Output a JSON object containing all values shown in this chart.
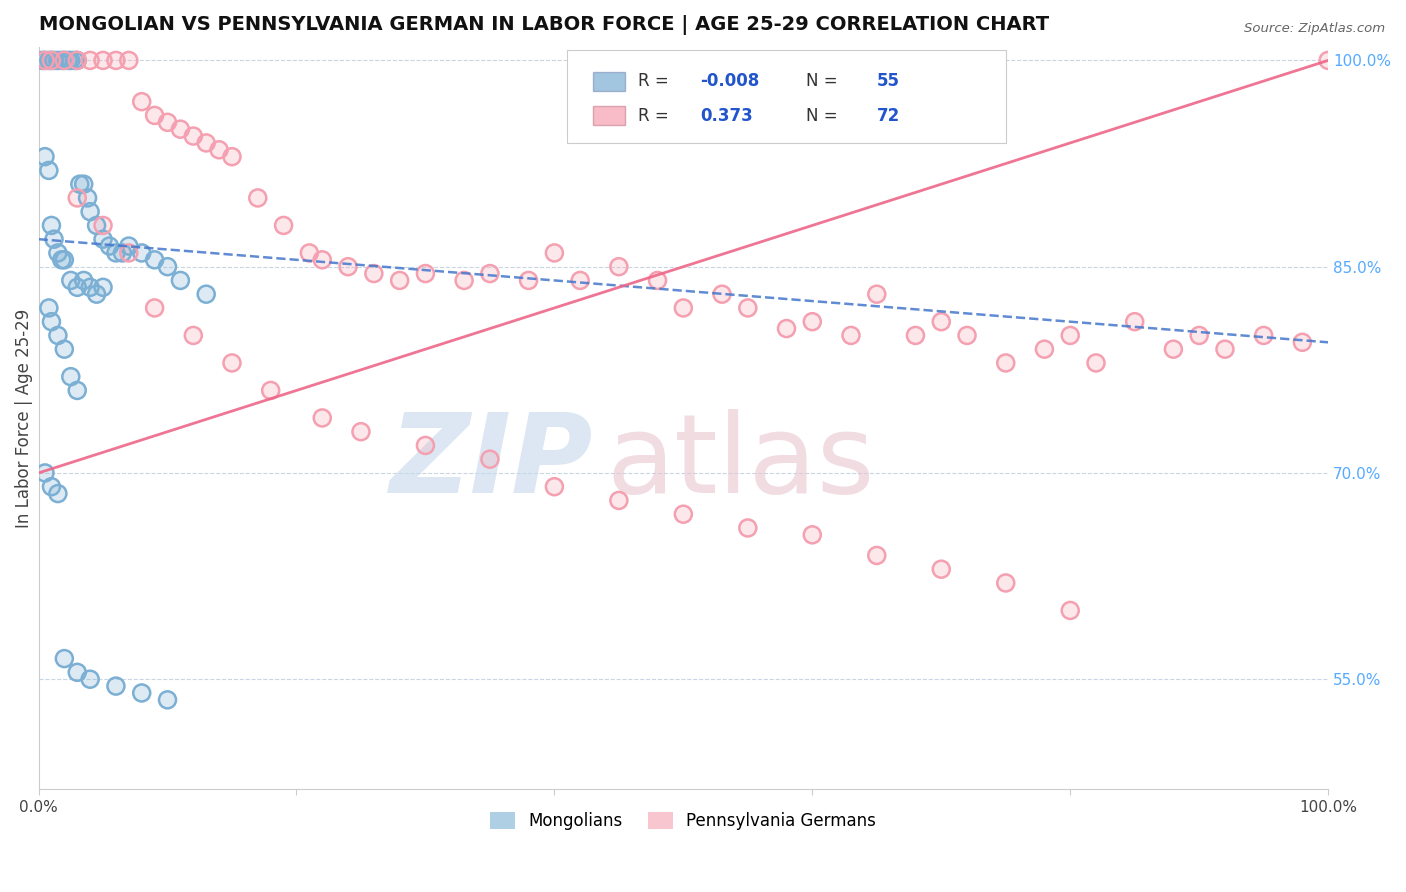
{
  "title": "MONGOLIAN VS PENNSYLVANIA GERMAN IN LABOR FORCE | AGE 25-29 CORRELATION CHART",
  "source": "Source: ZipAtlas.com",
  "ylabel": "In Labor Force | Age 25-29",
  "legend_label1": "Mongolians",
  "legend_label2": "Pennsylvania Germans",
  "r1": "-0.008",
  "n1": "55",
  "r2": "0.373",
  "n2": "72",
  "mongolian_color": "#7BAFD4",
  "penn_german_color": "#F4A0B0",
  "trend_blue_color": "#4477CC",
  "trend_pink_color": "#EE6688",
  "right_yticks": [
    55.0,
    70.0,
    85.0,
    100.0
  ],
  "ymin": 47.0,
  "ymax": 101.0,
  "xmin": 0.0,
  "xmax": 100.0,
  "mongolian_x": [
    0.3,
    0.5,
    0.8,
    1.0,
    1.2,
    1.5,
    1.8,
    2.0,
    2.3,
    2.5,
    2.8,
    3.0,
    3.2,
    3.5,
    3.8,
    4.0,
    4.5,
    5.0,
    5.5,
    6.0,
    6.5,
    7.0,
    8.0,
    9.0,
    10.0,
    11.0,
    13.0,
    0.5,
    0.8,
    1.0,
    1.2,
    1.5,
    1.8,
    2.0,
    2.5,
    3.0,
    3.5,
    4.0,
    4.5,
    5.0,
    0.8,
    1.0,
    1.5,
    2.0,
    2.5,
    3.0,
    0.5,
    1.0,
    1.5,
    2.0,
    3.0,
    4.0,
    6.0,
    8.0,
    10.0
  ],
  "mongolian_y": [
    100.0,
    100.0,
    100.0,
    100.0,
    100.0,
    100.0,
    100.0,
    100.0,
    100.0,
    100.0,
    100.0,
    100.0,
    91.0,
    91.0,
    90.0,
    89.0,
    88.0,
    87.0,
    86.5,
    86.0,
    86.0,
    86.5,
    86.0,
    85.5,
    85.0,
    84.0,
    83.0,
    93.0,
    92.0,
    88.0,
    87.0,
    86.0,
    85.5,
    85.5,
    84.0,
    83.5,
    84.0,
    83.5,
    83.0,
    83.5,
    82.0,
    81.0,
    80.0,
    79.0,
    77.0,
    76.0,
    70.0,
    69.0,
    68.5,
    56.5,
    55.5,
    55.0,
    54.5,
    54.0,
    53.5
  ],
  "penn_x": [
    0.5,
    1.0,
    2.0,
    3.0,
    4.0,
    5.0,
    6.0,
    7.0,
    8.0,
    9.0,
    10.0,
    11.0,
    12.0,
    13.0,
    14.0,
    15.0,
    17.0,
    19.0,
    21.0,
    22.0,
    24.0,
    26.0,
    28.0,
    30.0,
    33.0,
    35.0,
    38.0,
    40.0,
    42.0,
    45.0,
    48.0,
    50.0,
    53.0,
    55.0,
    58.0,
    60.0,
    63.0,
    65.0,
    68.0,
    70.0,
    72.0,
    75.0,
    78.0,
    80.0,
    82.0,
    85.0,
    88.0,
    90.0,
    92.0,
    95.0,
    98.0,
    100.0,
    3.0,
    5.0,
    7.0,
    9.0,
    12.0,
    15.0,
    18.0,
    22.0,
    25.0,
    30.0,
    35.0,
    40.0,
    45.0,
    50.0,
    55.0,
    60.0,
    65.0,
    70.0,
    75.0,
    80.0
  ],
  "penn_y": [
    100.0,
    100.0,
    100.0,
    100.0,
    100.0,
    100.0,
    100.0,
    100.0,
    97.0,
    96.0,
    95.5,
    95.0,
    94.5,
    94.0,
    93.5,
    93.0,
    90.0,
    88.0,
    86.0,
    85.5,
    85.0,
    84.5,
    84.0,
    84.5,
    84.0,
    84.5,
    84.0,
    86.0,
    84.0,
    85.0,
    84.0,
    82.0,
    83.0,
    82.0,
    80.5,
    81.0,
    80.0,
    83.0,
    80.0,
    81.0,
    80.0,
    78.0,
    79.0,
    80.0,
    78.0,
    81.0,
    79.0,
    80.0,
    79.0,
    80.0,
    79.5,
    100.0,
    90.0,
    88.0,
    86.0,
    82.0,
    80.0,
    78.0,
    76.0,
    74.0,
    73.0,
    72.0,
    71.0,
    69.0,
    68.0,
    67.0,
    66.0,
    65.5,
    64.0,
    63.0,
    62.0,
    60.0
  ]
}
